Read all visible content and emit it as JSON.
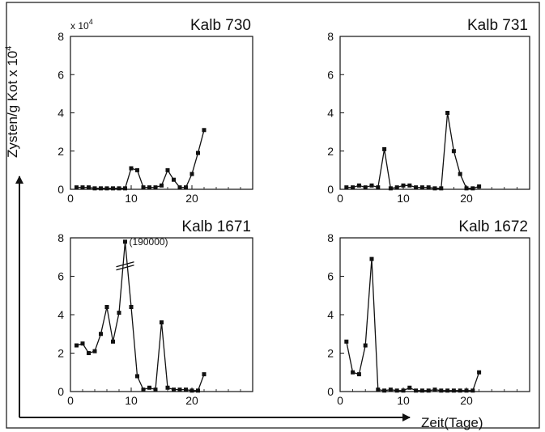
{
  "figure": {
    "ylabel": "Zysten/g Kot x 10",
    "ylabel_exp": "4",
    "xlabel": "Zeit(Tage)",
    "multiplier_base": "x 10",
    "multiplier_exp": "4"
  },
  "chart_data": [
    {
      "type": "line",
      "title": "Kalb 730",
      "xlim": [
        0,
        30
      ],
      "ylim": [
        0,
        8
      ],
      "xticks": [
        0,
        10,
        20
      ],
      "yticks": [
        0,
        2,
        4,
        6,
        8
      ],
      "x": [
        1,
        2,
        3,
        4,
        5,
        6,
        7,
        8,
        9,
        10,
        11,
        12,
        13,
        14,
        15,
        16,
        17,
        18,
        19,
        20,
        21,
        22
      ],
      "y": [
        0.1,
        0.1,
        0.1,
        0.05,
        0.05,
        0.05,
        0.05,
        0.05,
        0.05,
        1.1,
        1.0,
        0.1,
        0.1,
        0.1,
        0.2,
        1.0,
        0.5,
        0.1,
        0.1,
        0.8,
        1.9,
        3.1
      ]
    },
    {
      "type": "line",
      "title": "Kalb 731",
      "xlim": [
        0,
        30
      ],
      "ylim": [
        0,
        8
      ],
      "xticks": [
        0,
        10,
        20
      ],
      "yticks": [
        0,
        2,
        4,
        6,
        8
      ],
      "x": [
        1,
        2,
        3,
        4,
        5,
        6,
        7,
        8,
        9,
        10,
        11,
        12,
        13,
        14,
        15,
        16,
        17,
        18,
        19,
        20,
        21,
        22
      ],
      "y": [
        0.1,
        0.1,
        0.2,
        0.1,
        0.2,
        0.1,
        2.1,
        0.05,
        0.1,
        0.2,
        0.2,
        0.1,
        0.1,
        0.1,
        0.05,
        0.05,
        4.0,
        2.0,
        0.8,
        0.05,
        0.05,
        0.15
      ]
    },
    {
      "type": "line",
      "title": "Kalb 1671",
      "xlim": [
        0,
        30
      ],
      "ylim": [
        0,
        8
      ],
      "xticks": [
        0,
        10,
        20
      ],
      "yticks": [
        0,
        2,
        4,
        6,
        8
      ],
      "x": [
        1,
        2,
        3,
        4,
        5,
        6,
        7,
        8,
        9,
        10,
        11,
        12,
        13,
        14,
        15,
        16,
        17,
        18,
        19,
        20,
        21,
        22
      ],
      "y": [
        2.4,
        2.5,
        2.0,
        2.1,
        3.0,
        4.4,
        2.6,
        4.1,
        7.8,
        4.4,
        0.8,
        0.1,
        0.2,
        0.1,
        3.6,
        0.2,
        0.1,
        0.1,
        0.1,
        0.05,
        0.05,
        0.9
      ],
      "annotation": "(190000)"
    },
    {
      "type": "line",
      "title": "Kalb 1672",
      "xlim": [
        0,
        30
      ],
      "ylim": [
        0,
        8
      ],
      "xticks": [
        0,
        10,
        20
      ],
      "yticks": [
        0,
        2,
        4,
        6,
        8
      ],
      "x": [
        1,
        2,
        3,
        4,
        5,
        6,
        7,
        8,
        9,
        10,
        11,
        12,
        13,
        14,
        15,
        16,
        17,
        18,
        19,
        20,
        21,
        22
      ],
      "y": [
        2.6,
        1.0,
        0.9,
        2.4,
        6.9,
        0.1,
        0.05,
        0.1,
        0.05,
        0.05,
        0.2,
        0.05,
        0.05,
        0.05,
        0.1,
        0.05,
        0.05,
        0.05,
        0.05,
        0.05,
        0.05,
        1.0
      ]
    }
  ]
}
